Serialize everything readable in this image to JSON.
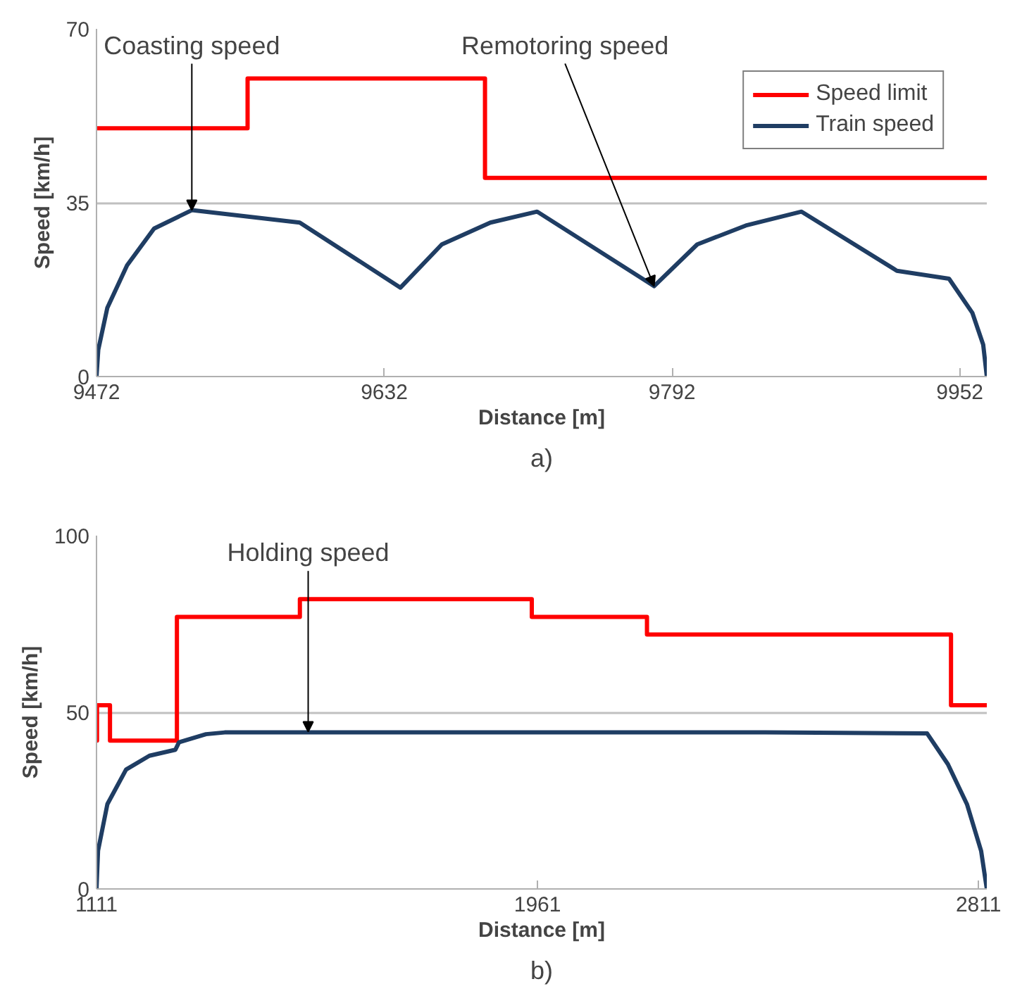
{
  "chart_data": [
    {
      "type": "line",
      "xlabel": "Distance [m]",
      "ylabel": "Speed [km/h]",
      "xlim": [
        9472,
        9967
      ],
      "xticks": [
        9472,
        9632,
        9792,
        9952
      ],
      "ylim": [
        0,
        70
      ],
      "yticks": [
        0,
        35,
        70
      ],
      "grid": "y",
      "legend": "top right",
      "line_style": "solid",
      "annotations": [
        {
          "text": "Coasting speed",
          "x": 9525,
          "y": 33.5
        },
        {
          "text": "Remotoring speed",
          "x": 9782,
          "y": 18.2
        },
        "a)"
      ],
      "series": [
        {
          "name": "Speed limit",
          "type": "step",
          "color": "#ff0000",
          "x": [
            9472,
            9556,
            9688,
            9967
          ],
          "values": [
            50,
            60,
            40,
            40
          ]
        },
        {
          "name": "Train speed",
          "color": "#1f3d63",
          "x": [
            9472,
            9473,
            9478,
            9489,
            9504,
            9525,
            9585,
            9641,
            9664,
            9691,
            9717,
            9782,
            9806,
            9833,
            9864,
            9917,
            9946,
            9959,
            9965,
            9967
          ],
          "values": [
            0,
            5.4,
            13.8,
            22.4,
            29.8,
            33.5,
            31,
            17.9,
            26.6,
            31,
            33.2,
            18.2,
            26.6,
            30.4,
            33.2,
            21.3,
            19.7,
            12.8,
            6.4,
            0
          ]
        }
      ]
    },
    {
      "type": "line",
      "xlabel": "Distance [m]",
      "ylabel": "Speed [km/h]",
      "xlim": [
        1111,
        2827
      ],
      "xticks": [
        1111,
        1961,
        2811
      ],
      "ylim": [
        0,
        100
      ],
      "yticks": [
        0,
        50,
        100
      ],
      "grid": "y",
      "line_style": "solid",
      "annotations": [
        {
          "text": "Holding speed",
          "x": 1519,
          "y": 44.5
        },
        "b)"
      ],
      "series": [
        {
          "type": "step",
          "color": "#ff0000",
          "x": [
            1111,
            1112,
            1137,
            1266,
            1503,
            1950,
            2172,
            2758,
            2827
          ],
          "values": [
            42,
            52,
            42,
            77,
            82,
            77,
            72,
            52,
            52
          ]
        },
        {
          "color": "#1f3d63",
          "x": [
            1111,
            1114,
            1132,
            1168,
            1213,
            1263,
            1270,
            1322,
            1358,
            1600,
            2000,
            2400,
            2712,
            2752,
            2789,
            2816,
            2827
          ],
          "values": [
            0,
            10.8,
            24,
            33.8,
            37.7,
            39.4,
            41.5,
            43.8,
            44.3,
            44.3,
            44.3,
            44.3,
            44,
            35.3,
            23.9,
            10.8,
            0
          ]
        }
      ]
    }
  ]
}
